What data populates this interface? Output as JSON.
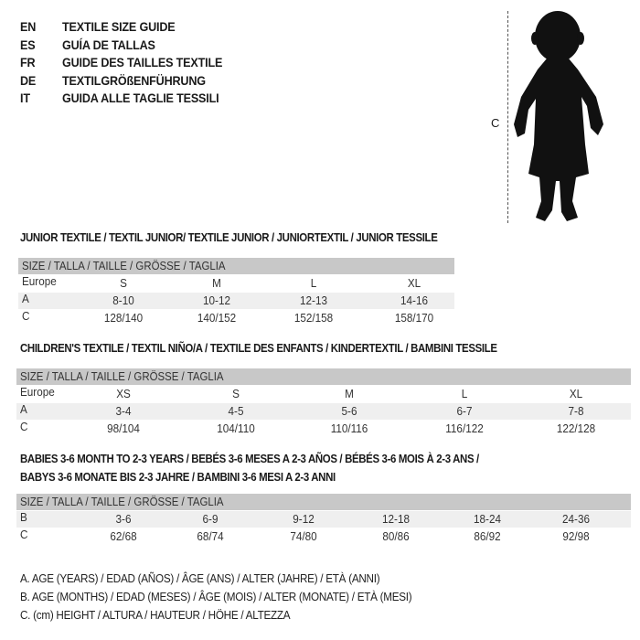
{
  "languages": [
    {
      "code": "EN",
      "title": "TEXTILE SIZE GUIDE"
    },
    {
      "code": "ES",
      "title": "GUÍA DE TALLAS"
    },
    {
      "code": "FR",
      "title": "GUIDE DES TAILLES TEXTILE"
    },
    {
      "code": "DE",
      "title": "TEXTILGRÖßENFÜHRUNG"
    },
    {
      "code": "IT",
      "title": "GUIDA ALLE TAGLIE TESSILI"
    }
  ],
  "figure": {
    "height_label": "C",
    "icon": "baby-silhouette-icon"
  },
  "junior": {
    "title": "JUNIOR TEXTILE / TEXTIL JUNIOR/ TEXTILE JUNIOR / JUNIORTEXTIL / JUNIOR TESSILE",
    "header": "SIZE / TALLA / TAILLE / GRÖSSE / TAGLIA",
    "rows": [
      {
        "label": "Europe",
        "values": [
          "S",
          "M",
          "L",
          "XL"
        ]
      },
      {
        "label": "A",
        "values": [
          "8-10",
          "10-12",
          "12-13",
          "14-16"
        ]
      },
      {
        "label": "C",
        "values": [
          "128/140",
          "140/152",
          "152/158",
          "158/170"
        ]
      }
    ]
  },
  "children": {
    "title": "CHILDREN'S TEXTILE / TEXTIL NIÑO/A / TEXTILE DES ENFANTS / KINDERTEXTIL / BAMBINI TESSILE",
    "header": "SIZE / TALLA / TAILLE / GRÖSSE / TAGLIA",
    "rows": [
      {
        "label": "Europe",
        "values": [
          "XS",
          "S",
          "M",
          "L",
          "XL"
        ]
      },
      {
        "label": "A",
        "values": [
          "3-4",
          "4-5",
          "5-6",
          "6-7",
          "7-8"
        ]
      },
      {
        "label": "C",
        "values": [
          "98/104",
          "104/110",
          "110/116",
          "116/122",
          "122/128"
        ]
      }
    ]
  },
  "babies": {
    "title_line1": "BABIES 3-6 MONTH TO 2-3 YEARS / BEBÉS 3-6 MESES A 2-3 AÑOS / BÉBÉS 3-6 MOIS À 2-3 ANS /",
    "title_line2": "BABYS 3-6 MONATE BIS 2-3 JAHRE / BAMBINI 3-6 MESI A 2-3 ANNI",
    "header": "SIZE / TALLA / TAILLE / GRÖSSE / TAGLIA",
    "rows": [
      {
        "label": "B",
        "values": [
          "3-6",
          "6-9",
          "9-12",
          "12-18",
          "18-24",
          "24-36"
        ]
      },
      {
        "label": "C",
        "values": [
          "62/68",
          "68/74",
          "74/80",
          "80/86",
          "86/92",
          "92/98"
        ]
      }
    ]
  },
  "legend": [
    "A. AGE (YEARS) / EDAD (AÑOS) / ÂGE (ANS) / ALTER (JAHRE) / ETÀ (ANNI)",
    "B. AGE (MONTHS) / EDAD (MESES) / ÂGE (MOIS) / ALTER (MONATE) / ETÀ (MESI)",
    "C. (cm) HEIGHT / ALTURA / HAUTEUR / HÖHE / ALTEZZA"
  ]
}
